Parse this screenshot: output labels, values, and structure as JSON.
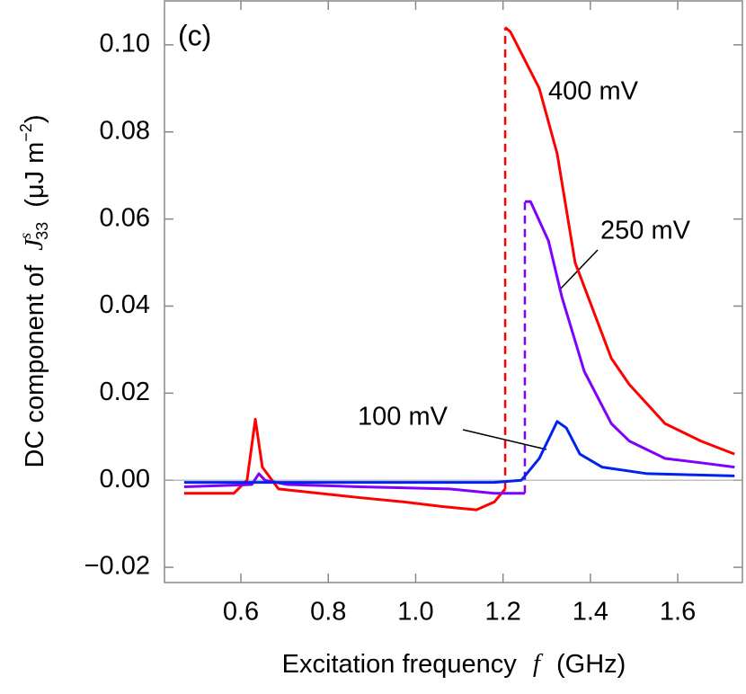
{
  "chart_data": {
    "type": "line",
    "panel_label": "(c)",
    "xlabel": [
      "Excitation frequency",
      "f",
      "(GHz)"
    ],
    "ylabel": [
      "DC component of",
      "J",
      "s",
      "33",
      "(μJ m",
      "−2",
      ")"
    ],
    "xlim": [
      0.425,
      1.748
    ],
    "ylim": [
      -0.0235,
      0.1101
    ],
    "xticks": [
      0.6,
      0.8,
      {
        "value": 1,
        "label": "1.0"
      },
      1.2,
      1.4,
      1.6
    ],
    "yticks": [
      {
        "value": -0.02,
        "label": "−0.02"
      },
      {
        "value": 0,
        "label": "0.00"
      },
      0.02,
      0.04,
      0.06,
      0.08,
      {
        "value": 0.1,
        "label": "0.10"
      }
    ],
    "zero_line": true,
    "series": [
      {
        "name": "400 mV",
        "color": "#ff0000",
        "x": [
          0.47,
          0.584,
          0.614,
          0.633,
          0.649,
          0.686,
          0.872,
          0.974,
          1.057,
          1.139,
          1.18,
          1.205,
          1.205,
          1.217,
          1.283,
          1.324,
          1.365,
          1.448,
          1.489,
          1.571,
          1.653,
          1.73
        ],
        "values": [
          -0.003,
          -0.003,
          0.0,
          0.014,
          0.003,
          -0.002,
          -0.004,
          -0.005,
          -0.006,
          -0.0068,
          -0.005,
          -0.002,
          0.104,
          0.103,
          0.09,
          0.075,
          0.05,
          0.028,
          0.022,
          0.013,
          0.009,
          0.006
        ]
      },
      {
        "name": "250 mV",
        "color": "#8000ff",
        "x": [
          0.47,
          0.625,
          0.641,
          0.655,
          0.706,
          0.872,
          1.077,
          1.18,
          1.25,
          1.25,
          1.263,
          1.304,
          1.335,
          1.386,
          1.448,
          1.489,
          1.571,
          1.653,
          1.73
        ],
        "values": [
          -0.0015,
          -0.001,
          0.0015,
          0.0,
          -0.001,
          -0.0015,
          -0.002,
          -0.003,
          -0.003,
          0.064,
          0.064,
          0.055,
          0.042,
          0.025,
          0.013,
          0.009,
          0.005,
          0.004,
          0.003
        ]
      },
      {
        "name": "100 mV",
        "color": "#0022ee",
        "x": [
          0.47,
          0.872,
          1.18,
          1.242,
          1.283,
          1.324,
          1.345,
          1.376,
          1.427,
          1.53,
          1.73
        ],
        "values": [
          -0.0005,
          -0.0005,
          -0.0005,
          0.0,
          0.005,
          0.0135,
          0.012,
          0.006,
          0.003,
          0.0015,
          0.001
        ]
      }
    ]
  }
}
